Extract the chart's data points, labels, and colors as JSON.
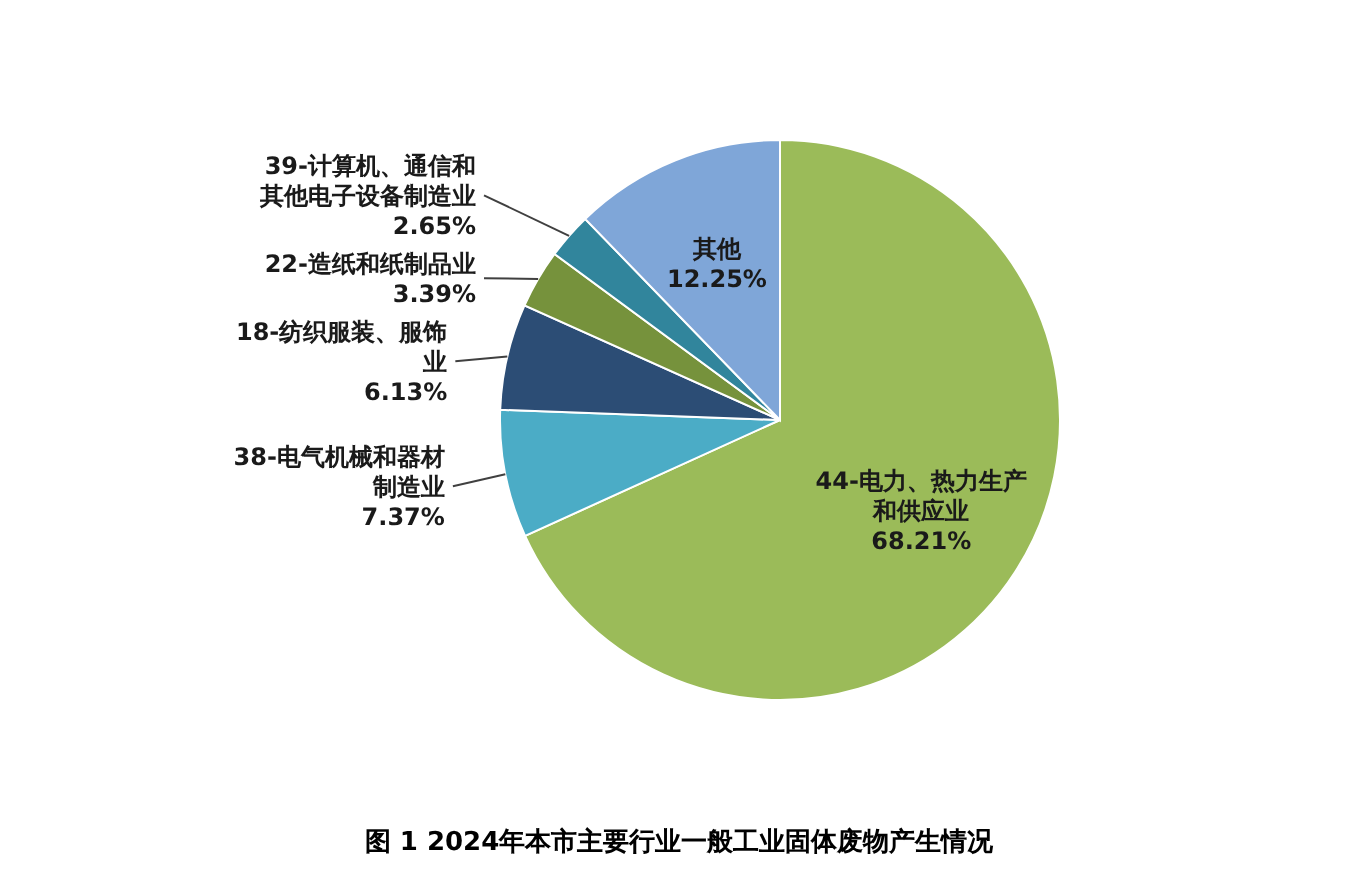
{
  "chart_data": {
    "type": "pie",
    "annotations": [
      "图 1 2024年本市主要行业一般工业固体废物产生情况"
    ],
    "categories": [
      "44-电力、热力生产和供应业",
      "38-电气机械和器材制造业",
      "18-纺织服装、服饰业",
      "22-造纸和纸制品业",
      "39-计算机、通信和其他电子设备制造业",
      "其他"
    ],
    "values": [
      68.21,
      7.37,
      6.13,
      3.39,
      2.65,
      12.25
    ],
    "value_labels": [
      "68.21%",
      "7.37%",
      "6.13%",
      "3.39%",
      "2.65%",
      "12.25%"
    ],
    "colors": [
      "#9bbb59",
      "#4bacc6",
      "#2c4d75",
      "#76923c",
      "#31859c",
      "#7fa6d8"
    ]
  }
}
